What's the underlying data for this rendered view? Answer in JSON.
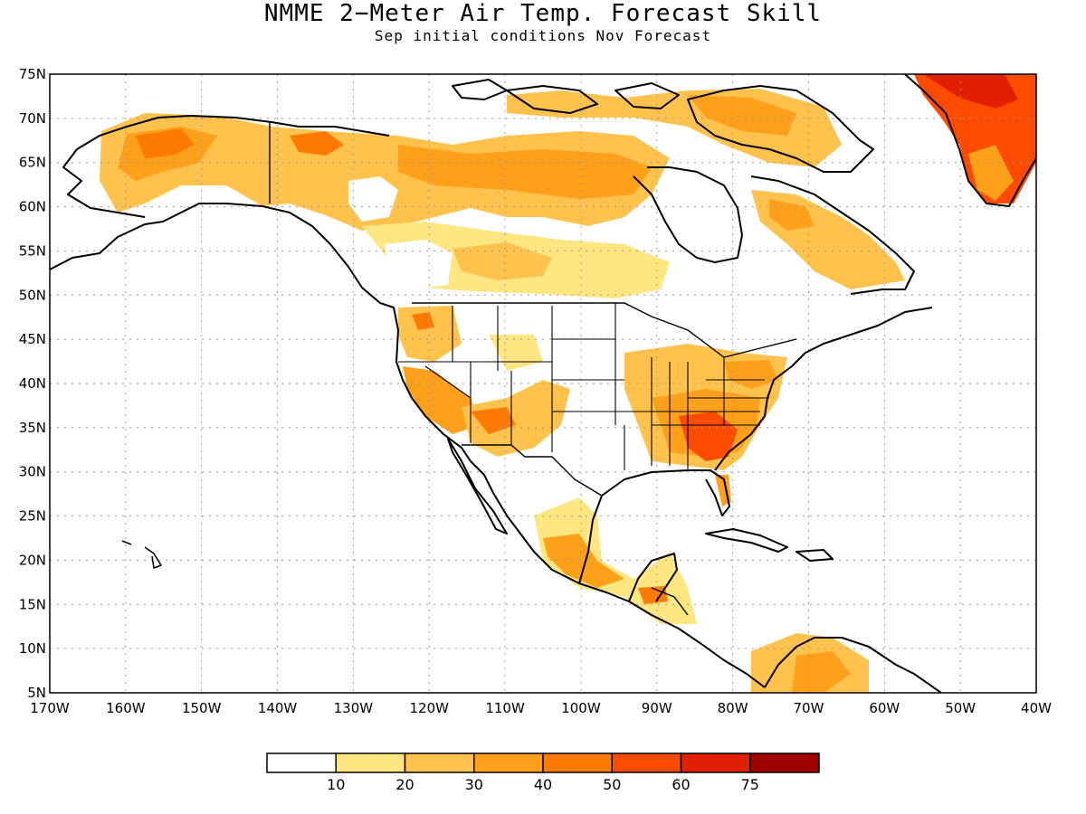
{
  "title": "NMME 2−Meter Air Temp. Forecast Skill",
  "subtitle": "Sep initial conditions   Nov Forecast",
  "map": {
    "lat_range": [
      5,
      75
    ],
    "lon_range": [
      -170,
      -40
    ],
    "lat_ticks": [
      "75N",
      "70N",
      "65N",
      "60N",
      "55N",
      "50N",
      "45N",
      "40N",
      "35N",
      "30N",
      "25N",
      "20N",
      "15N",
      "10N",
      "5N"
    ],
    "lon_ticks": [
      "170W",
      "160W",
      "150W",
      "140W",
      "130W",
      "120W",
      "110W",
      "100W",
      "90W",
      "80W",
      "70W",
      "60W",
      "50W",
      "40W"
    ]
  },
  "colorbar": {
    "colors": [
      "#ffffff",
      "#ffe680",
      "#ffc24d",
      "#ffa01a",
      "#ff7a00",
      "#ff4b00",
      "#e02000",
      "#a00000"
    ],
    "labels": [
      "10",
      "20",
      "30",
      "40",
      "50",
      "60",
      "75"
    ]
  },
  "colors": {
    "level1": "#ffe680",
    "level2": "#ffc24d",
    "level3": "#ffa01a",
    "level4": "#ff7a00",
    "level5": "#ff4b00",
    "level6": "#e02000"
  }
}
